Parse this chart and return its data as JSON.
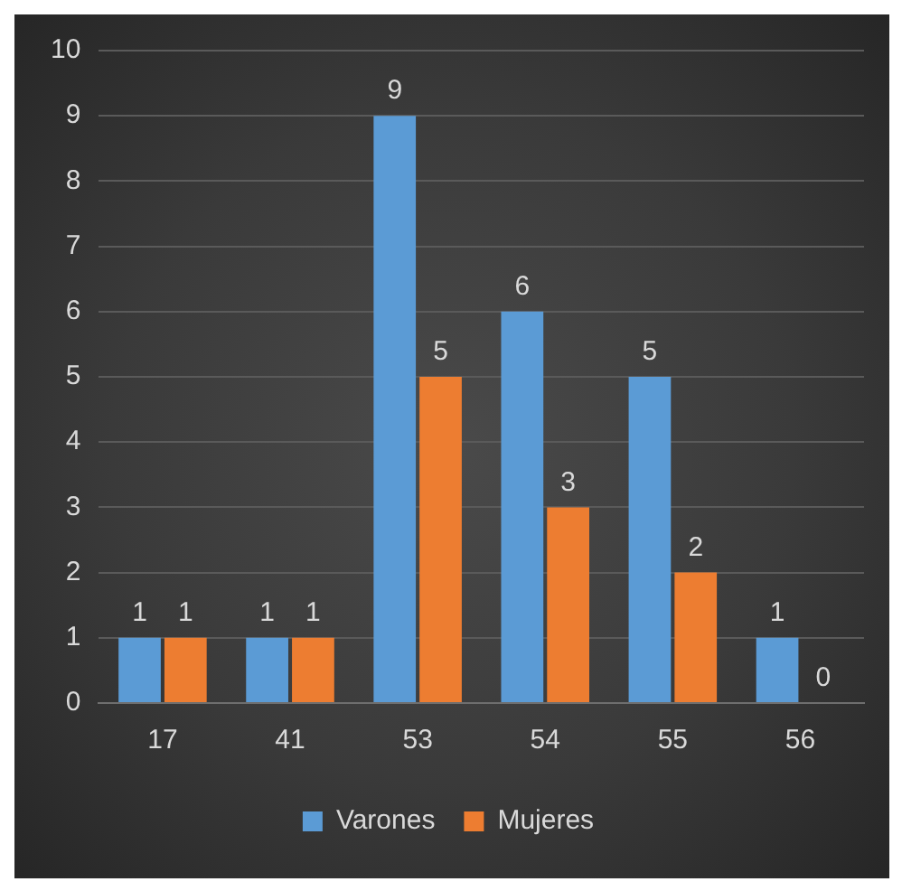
{
  "chart_data": {
    "type": "bar",
    "categories": [
      "17",
      "41",
      "53",
      "54",
      "55",
      "56"
    ],
    "series": [
      {
        "name": "Varones",
        "color": "#5b9bd5",
        "values": [
          1,
          1,
          9,
          6,
          5,
          1
        ]
      },
      {
        "name": "Mujeres",
        "color": "#ed7d31",
        "values": [
          1,
          1,
          5,
          3,
          2,
          0
        ]
      }
    ],
    "ylim": [
      0,
      10
    ],
    "yticks": [
      0,
      1,
      2,
      3,
      4,
      5,
      6,
      7,
      8,
      9,
      10
    ],
    "grid": "y",
    "legend": "bottom",
    "data_labels": true
  }
}
